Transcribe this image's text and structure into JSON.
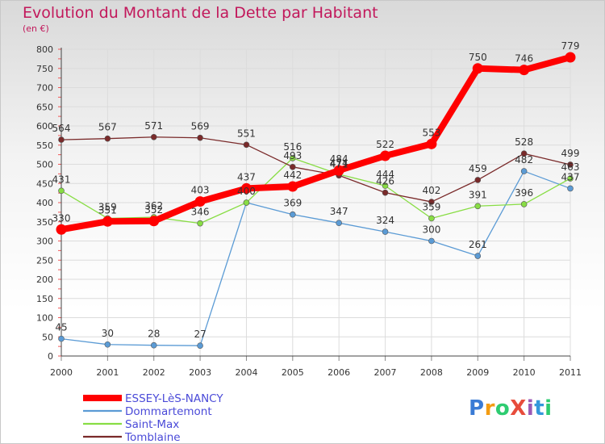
{
  "title": "Evolution du Montant de la Dette par Habitant",
  "unit": "(en €)",
  "logo": {
    "text": "ProXiti",
    "letter_colors": [
      "#3a7bd5",
      "#f39c12",
      "#2ecc71",
      "#e74c3c",
      "#9b59b6",
      "#3498db",
      "#2ecc71"
    ]
  },
  "chart_data": {
    "type": "line",
    "title": "Evolution du Montant de la Dette par Habitant",
    "ylabel": "(en €)",
    "xlabel": "",
    "x": [
      "2000",
      "2001",
      "2002",
      "2003",
      "2004",
      "2005",
      "2006",
      "2007",
      "2008",
      "2009",
      "2010",
      "2011"
    ],
    "ylim": [
      0,
      800
    ],
    "yticks": [
      0,
      50,
      100,
      150,
      200,
      250,
      300,
      350,
      400,
      450,
      500,
      550,
      600,
      650,
      700,
      750,
      800
    ],
    "grid": true,
    "legend_position": "bottom-left",
    "series": [
      {
        "name": "ESSEY-LèS-NANCY",
        "color": "#ff0000",
        "emphasis": true,
        "values": [
          330,
          351,
          352,
          403,
          437,
          442,
          484,
          522,
          553,
          750,
          746,
          779
        ]
      },
      {
        "name": "Dommartemont",
        "color": "#5b9bd5",
        "emphasis": false,
        "values": [
          45,
          30,
          28,
          27,
          400,
          369,
          347,
          324,
          300,
          261,
          482,
          437
        ]
      },
      {
        "name": "Saint-Max",
        "color": "#88dd44",
        "emphasis": false,
        "values": [
          431,
          359,
          362,
          346,
          400,
          516,
          474,
          444,
          359,
          391,
          396,
          463
        ]
      },
      {
        "name": "Tomblaine",
        "color": "#7a2a2a",
        "emphasis": false,
        "values": [
          564,
          567,
          571,
          569,
          551,
          493,
          471,
          426,
          402,
          459,
          528,
          499
        ]
      }
    ],
    "labels_shown": [
      [
        330,
        351,
        352,
        403,
        437,
        442,
        484,
        522,
        553,
        750,
        746,
        779
      ],
      [
        45,
        30,
        28,
        27,
        null,
        369,
        347,
        324,
        300,
        261,
        482,
        437
      ],
      [
        431,
        359,
        362,
        346,
        400,
        516,
        474,
        444,
        359,
        391,
        396,
        463
      ],
      [
        564,
        567,
        571,
        569,
        551,
        493,
        471,
        426,
        402,
        459,
        528,
        499
      ]
    ]
  }
}
